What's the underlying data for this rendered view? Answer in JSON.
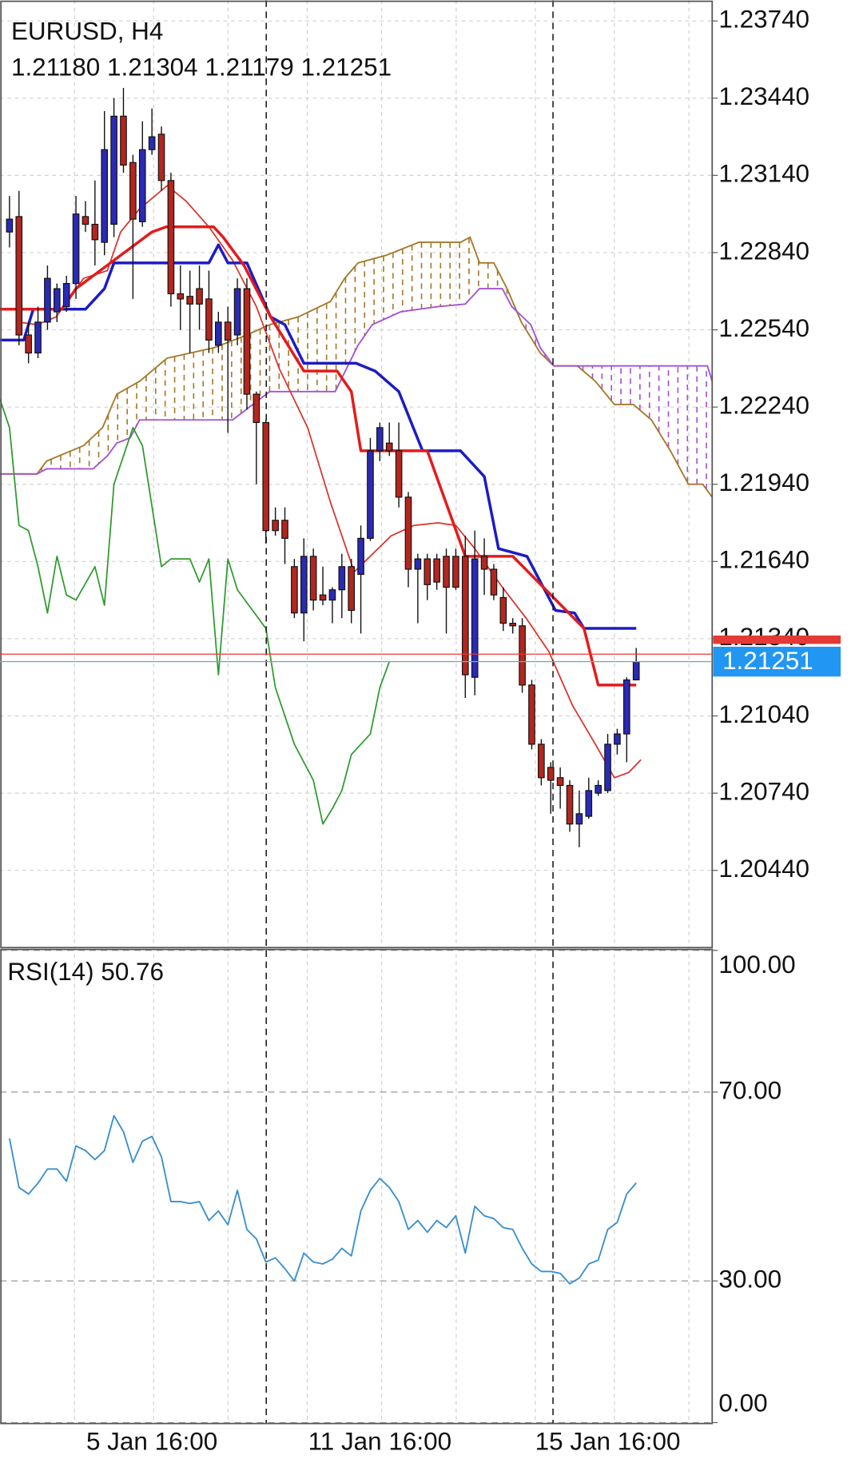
{
  "chart_data": [
    {
      "type": "candlestick",
      "title": "EURUSD, H4",
      "ohlc_labels": [
        "1.21180",
        "1.21304",
        "1.21179",
        "1.21251"
      ],
      "categories": [
        null,
        null,
        null,
        null,
        null,
        null,
        null,
        null,
        null,
        null,
        null,
        null,
        null,
        null,
        null,
        "5 Jan 16:00",
        null,
        null,
        null,
        null,
        null,
        null,
        null,
        null,
        null,
        null,
        null,
        null,
        null,
        null,
        null,
        null,
        null,
        null,
        null,
        null,
        null,
        null,
        null,
        "11 Jan 16:00",
        null,
        null,
        null,
        null,
        null,
        null,
        null,
        null,
        null,
        null,
        null,
        null,
        null,
        null,
        null,
        null,
        null,
        null,
        null,
        null,
        null,
        null,
        null,
        "15 Jan 16:00",
        null,
        null,
        null
      ],
      "open": [
        1.2292,
        1.2298,
        1.2252,
        1.2245,
        1.2257,
        1.2261,
        1.2263,
        1.2272,
        1.2298,
        1.2295,
        1.2288,
        1.2295,
        1.2337,
        1.2319,
        1.2296,
        1.2324,
        1.233,
        1.2312,
        1.2268,
        1.2267,
        1.227,
        1.2266,
        1.2248,
        1.2257,
        1.2252,
        1.227,
        1.2229,
        1.2218,
        1.218,
        1.218,
        1.2162,
        1.2144,
        1.2166,
        1.2151,
        1.2149,
        1.2153,
        1.2162,
        1.2159,
        1.2173,
        1.2207,
        1.221,
        1.2207,
        1.2189,
        1.2161,
        1.2165,
        1.2165,
        1.2166,
        1.2166,
        1.2166,
        1.2119,
        1.2166,
        1.2161,
        1.215,
        1.214,
        1.2139,
        1.2116,
        1.2093,
        1.2084,
        1.208,
        1.2077,
        1.2062,
        1.2065,
        1.2074,
        1.2075,
        1.2093,
        1.2097,
        1.2118
      ],
      "high": [
        1.2306,
        1.2308,
        1.2257,
        1.2263,
        1.2279,
        1.2272,
        1.2275,
        1.2306,
        1.2304,
        1.2312,
        1.2339,
        1.2344,
        1.2348,
        1.2322,
        1.2335,
        1.234,
        1.2333,
        1.2315,
        1.2279,
        1.2277,
        1.2279,
        1.2277,
        1.2261,
        1.2263,
        1.2274,
        1.2274,
        1.223,
        1.2219,
        1.2185,
        1.2185,
        1.2165,
        1.2173,
        1.2169,
        1.2162,
        1.2154,
        1.2167,
        1.2165,
        1.2178,
        1.2212,
        1.2218,
        1.2218,
        1.2218,
        1.2191,
        1.2167,
        1.2167,
        1.2167,
        1.2169,
        1.2169,
        1.2174,
        1.2176,
        1.2173,
        1.2163,
        1.2154,
        1.2142,
        1.2142,
        1.2118,
        1.2095,
        1.2086,
        1.2084,
        1.2079,
        1.2075,
        1.208,
        1.2079,
        1.2097,
        1.2099,
        1.2119,
        1.21304
      ],
      "low": [
        1.2286,
        1.2248,
        1.2241,
        1.2243,
        1.2254,
        1.2257,
        1.2261,
        1.2266,
        1.2292,
        1.2279,
        1.2283,
        1.229,
        1.2315,
        1.2266,
        1.2294,
        1.2322,
        1.2308,
        1.2263,
        1.2254,
        1.2245,
        1.2254,
        1.2245,
        1.2245,
        1.2214,
        1.2248,
        1.2223,
        1.2194,
        1.2171,
        1.2174,
        1.2163,
        1.2142,
        1.2133,
        1.2145,
        1.2147,
        1.214,
        1.2142,
        1.214,
        1.2136,
        1.2172,
        1.2203,
        1.2205,
        1.2185,
        1.2154,
        1.214,
        1.2149,
        1.2153,
        1.2136,
        1.2153,
        1.2111,
        1.2112,
        1.2151,
        1.2149,
        1.2137,
        1.2136,
        1.2113,
        1.2091,
        1.2077,
        1.2066,
        1.2068,
        1.2059,
        1.2053,
        1.2064,
        1.2073,
        1.2074,
        1.2089,
        1.2086,
        1.21179
      ],
      "close": [
        1.2297,
        1.2252,
        1.2245,
        1.2257,
        1.2274,
        1.227,
        1.2272,
        1.2299,
        1.2295,
        1.2289,
        1.2324,
        1.2337,
        1.2318,
        1.2297,
        1.2324,
        1.2329,
        1.2312,
        1.2268,
        1.2266,
        1.2264,
        1.2264,
        1.225,
        1.2257,
        1.225,
        1.227,
        1.2229,
        1.2218,
        1.2176,
        1.2176,
        1.2173,
        1.2144,
        1.2166,
        1.2149,
        1.2149,
        1.2153,
        1.2162,
        1.2145,
        1.2173,
        1.2207,
        1.2216,
        1.2207,
        1.2189,
        1.2161,
        1.2165,
        1.2155,
        1.2156,
        1.2154,
        1.2154,
        1.212,
        1.2165,
        1.2161,
        1.2151,
        1.214,
        1.2139,
        1.2116,
        1.2093,
        1.208,
        1.2079,
        1.2077,
        1.2062,
        1.2066,
        1.2075,
        1.2077,
        1.2093,
        1.2097,
        1.2118,
        1.21251
      ],
      "bull_color": "#2a2ab5",
      "bear_color": "#b3261e",
      "ask": 1.2128,
      "ask_color": "#e53935",
      "price_color": "#2196f3",
      "xlim": [
        -1,
        74
      ],
      "ylim": [
        1.2014,
        1.2382
      ],
      "yticks": [
        {
          "value": 1.2374,
          "label": "1.23740"
        },
        {
          "value": 1.2344,
          "label": "1.23440"
        },
        {
          "value": 1.2314,
          "label": "1.23140"
        },
        {
          "value": 1.2284,
          "label": "1.22840"
        },
        {
          "value": 1.2254,
          "label": "1.22540"
        },
        {
          "value": 1.2224,
          "label": "1.22240"
        },
        {
          "value": 1.2194,
          "label": "1.21940"
        },
        {
          "value": 1.2164,
          "label": "1.21640"
        },
        {
          "value": 1.2134,
          "label": "1.21340"
        },
        {
          "value": 1.2104,
          "label": "1.21040"
        },
        {
          "value": 1.2074,
          "label": "1.20740"
        },
        {
          "value": 1.2044,
          "label": "1.20440"
        }
      ],
      "grid": true,
      "cloud_a": {
        "color": "#a47a2c",
        "x": [
          -1,
          2.9,
          3.9,
          7.8,
          9.8,
          11.3,
          13.7,
          16.6,
          21.5,
          25,
          27.4,
          30.4,
          33.8,
          35.3,
          36.7,
          39.7,
          43.1,
          47.5,
          48.5,
          49.5,
          51,
          52.4,
          53.9,
          55.9,
          57.3,
          59.8,
          61.7,
          63.7,
          65.7,
          67.6,
          69.6,
          71.5,
          73,
          74
        ],
        "values": [
          1.2198,
          1.2198,
          1.2203,
          1.2209,
          1.2216,
          1.2229,
          1.2234,
          1.2243,
          1.2247,
          1.2252,
          1.2256,
          1.2259,
          1.2265,
          1.2274,
          1.228,
          1.2283,
          1.2288,
          1.2288,
          1.229,
          1.228,
          1.228,
          1.227,
          1.2257,
          1.2245,
          1.224,
          1.224,
          1.2234,
          1.2225,
          1.2225,
          1.2219,
          1.2207,
          1.2194,
          1.2194,
          1.2189
        ]
      },
      "cloud_b": {
        "color": "#a352d6",
        "x": [
          -1,
          2.9,
          3.9,
          8.8,
          10.3,
          11.3,
          12.7,
          13.7,
          23.5,
          27.4,
          34.3,
          36.7,
          38.2,
          41.2,
          45.1,
          48,
          49.5,
          51.9,
          52.9,
          54.9,
          55.9,
          57.3,
          73.5,
          74
        ],
        "values": [
          1.2198,
          1.2198,
          1.22,
          1.22,
          1.2205,
          1.221,
          1.2212,
          1.2219,
          1.2219,
          1.223,
          1.223,
          1.2248,
          1.2256,
          1.2261,
          1.2263,
          1.2264,
          1.227,
          1.227,
          1.2263,
          1.2256,
          1.2247,
          1.224,
          1.224,
          1.2234
        ]
      },
      "series": [
        {
          "color": "#2e9a2e",
          "x": [
            -1,
            0,
            1,
            2,
            3,
            4,
            5,
            6,
            7,
            9,
            10,
            11,
            13,
            14,
            16,
            17,
            19,
            20,
            21,
            22,
            23,
            24,
            27,
            28,
            30,
            32,
            33,
            34,
            35,
            36,
            38,
            39,
            40
          ],
          "values": [
            1.2227,
            1.2216,
            1.2178,
            1.2176,
            1.2162,
            1.2144,
            1.2166,
            1.2151,
            1.2149,
            1.2162,
            1.2147,
            1.2194,
            1.2216,
            1.2209,
            1.2162,
            1.2165,
            1.2165,
            1.2156,
            1.2165,
            1.212,
            1.2165,
            1.2153,
            1.2138,
            1.2115,
            1.2093,
            1.2079,
            1.2062,
            1.2068,
            1.2075,
            1.2089,
            1.2097,
            1.2115,
            1.21251
          ]
        },
        {
          "color": "#d8342c",
          "x": [
            1,
            2.9,
            4.9,
            7.8,
            10.3,
            11.7,
            13.7,
            16.6,
            18.6,
            21,
            23.5,
            26,
            28.4,
            31.4,
            33.8,
            36.3,
            37.7,
            40.2,
            42.6,
            45.1,
            47,
            49,
            51.9,
            54.4,
            56.8,
            59.3,
            61.7,
            63.7,
            65.2,
            66.5
          ],
          "values": [
            1.2257,
            1.2256,
            1.2259,
            1.2274,
            1.2277,
            1.2292,
            1.2301,
            1.231,
            1.2304,
            1.2294,
            1.2281,
            1.2263,
            1.2239,
            1.2216,
            1.2187,
            1.216,
            1.2165,
            1.2174,
            1.2178,
            1.2179,
            1.2178,
            1.2169,
            1.2154,
            1.2142,
            1.2129,
            1.2108,
            1.2093,
            1.208,
            1.2082,
            1.2087
          ]
        },
        {
          "color": "#1c1cc4",
          "x": [
            -1,
            1.5,
            2.5,
            8,
            10,
            11,
            21,
            22,
            23,
            25,
            27.5,
            29,
            31,
            36.5,
            38.5,
            41,
            43.5,
            47.5,
            50,
            51.5,
            54.5,
            57.5,
            59.5,
            60.5,
            66
          ],
          "values": [
            1.225,
            1.225,
            1.2262,
            1.2262,
            1.227,
            1.228,
            1.228,
            1.2287,
            1.228,
            1.228,
            1.2259,
            1.2256,
            1.2241,
            1.2241,
            1.2238,
            1.223,
            1.2207,
            1.2207,
            1.2197,
            1.2169,
            1.2166,
            1.2145,
            1.2144,
            1.2138,
            1.2138
          ]
        },
        {
          "color": "#e31b1b",
          "x": [
            -1,
            5.5,
            7,
            15,
            16.5,
            21.5,
            22.5,
            24.7,
            27.5,
            31,
            34.5,
            36,
            37,
            44,
            48,
            53,
            60.5,
            62,
            66
          ],
          "values": [
            1.2262,
            1.2262,
            1.227,
            1.2292,
            1.2294,
            1.2294,
            1.229,
            1.2279,
            1.2259,
            1.2238,
            1.2238,
            1.223,
            1.2207,
            1.2207,
            1.2166,
            1.2166,
            1.2138,
            1.2116,
            1.2116
          ]
        }
      ]
    },
    {
      "type": "line",
      "title": "RSI(14)",
      "color": "#3a8fd0",
      "values": [
        60.2,
        49.8,
        48.4,
        50.7,
        53.7,
        53.7,
        51.1,
        58.6,
        57.6,
        55.7,
        57.6,
        65.0,
        61.6,
        55.1,
        59.6,
        60.6,
        56.3,
        46.8,
        46.8,
        46.4,
        46.8,
        42.8,
        44.8,
        41.9,
        49.2,
        40.9,
        38.9,
        34.0,
        34.9,
        32.6,
        30.0,
        35.9,
        34.0,
        33.6,
        34.6,
        36.9,
        35.3,
        44.8,
        49.2,
        51.7,
        49.8,
        46.8,
        40.9,
        42.8,
        40.3,
        42.8,
        41.3,
        43.8,
        35.9,
        45.8,
        43.8,
        43.2,
        41.3,
        40.9,
        36.9,
        33.6,
        32.0,
        32.0,
        31.6,
        29.4,
        30.6,
        33.6,
        34.4,
        40.9,
        42.4,
        48.4,
        50.76
      ],
      "ylim": [
        0,
        100
      ],
      "yticks": [
        {
          "value": 100,
          "label": "100.00"
        },
        {
          "value": 70,
          "label": "70.00"
        },
        {
          "value": 30,
          "label": "30.00"
        },
        {
          "value": 0,
          "label": "0.00"
        }
      ],
      "grid": true
    }
  ]
}
